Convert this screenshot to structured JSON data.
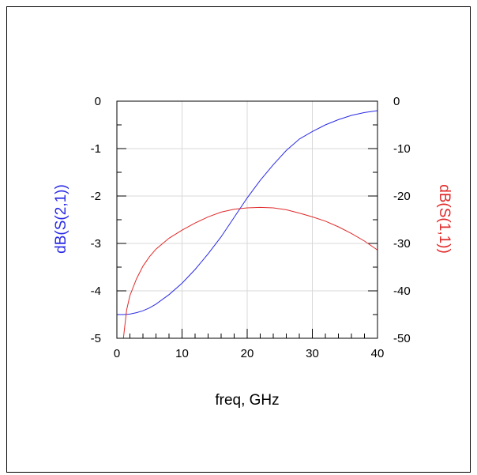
{
  "chart_data": {
    "type": "line",
    "title": "",
    "xlabel": "freq, GHz",
    "ylabel_left": "dB(S(2,1))",
    "ylabel_right": "dB(S(1,1))",
    "xlim": [
      0,
      40
    ],
    "ylim_left": [
      -5,
      0
    ],
    "ylim_right": [
      -50,
      0
    ],
    "x_ticks": [
      0,
      10,
      20,
      30,
      40
    ],
    "y_ticks_left": [
      0,
      -1,
      -2,
      -3,
      -4,
      -5
    ],
    "y_ticks_right": [
      0,
      -10,
      -20,
      -30,
      -40,
      -50
    ],
    "grid": true,
    "colors": {
      "s21": "#2a2ae6",
      "s11": "#e02a2a",
      "grid": "#d8d8d8",
      "axis": "#000000"
    },
    "series": [
      {
        "axis": "left",
        "x": [
          0,
          1,
          2,
          3,
          4,
          5,
          6,
          8,
          10,
          12,
          14,
          16,
          18,
          20,
          22,
          24,
          26,
          28,
          30,
          32,
          34,
          36,
          38,
          40
        ],
        "y": [
          -4.5,
          -4.5,
          -4.49,
          -4.46,
          -4.42,
          -4.36,
          -4.28,
          -4.08,
          -3.84,
          -3.55,
          -3.22,
          -2.86,
          -2.45,
          -2.04,
          -1.67,
          -1.34,
          -1.04,
          -0.8,
          -0.64,
          -0.5,
          -0.39,
          -0.3,
          -0.24,
          -0.2
        ]
      },
      {
        "axis": "right",
        "x": [
          1,
          1.5,
          2,
          3,
          4,
          5,
          6,
          8,
          10,
          12,
          14,
          16,
          18,
          20,
          22,
          24,
          26,
          28,
          30,
          32,
          34,
          36,
          38,
          40
        ],
        "y": [
          -50,
          -44,
          -41,
          -37.5,
          -34.8,
          -32.8,
          -31.2,
          -28.9,
          -27.2,
          -25.7,
          -24.4,
          -23.4,
          -22.8,
          -22.5,
          -22.4,
          -22.5,
          -22.9,
          -23.6,
          -24.4,
          -25.3,
          -26.5,
          -27.9,
          -29.5,
          -31.4
        ]
      }
    ]
  }
}
